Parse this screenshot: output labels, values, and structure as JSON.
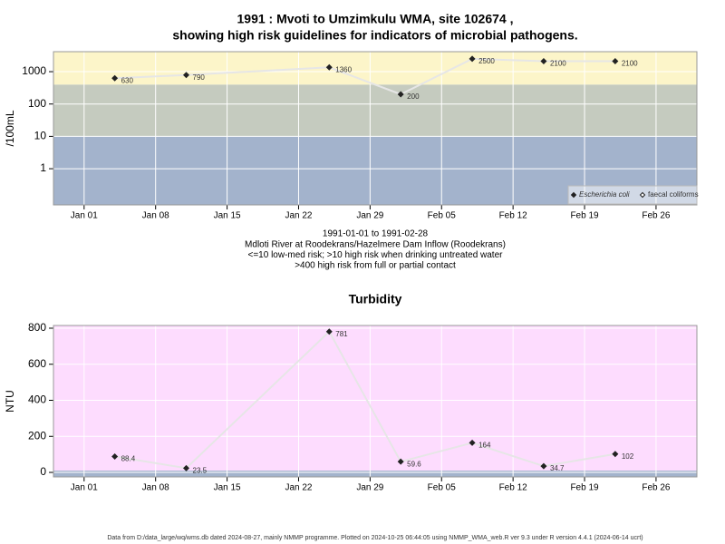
{
  "chart_data": [
    {
      "type": "line",
      "title": "1991 : Mvoti to Umzimkulu WMA, site 102674 ,",
      "subtitle": "showing high risk guidelines for indicators of microbial pathogens.",
      "ylabel": "/100mL",
      "notes": [
        "1991-01-01 to 1991-02-28",
        "Mdloti River at Roodekrans/Hazelmere Dam Inflow (Roodekrans)",
        "<=10 low-med risk; >10 high risk when drinking untreated water",
        ">400 high risk from full or partial contact"
      ],
      "x": [
        "1991-01-04",
        "1991-01-11",
        "1991-01-25",
        "1991-02-01",
        "1991-02-08",
        "1991-02-15",
        "1991-02-22"
      ],
      "series": [
        {
          "name": "Escherichia coli",
          "color": "#222222",
          "line_color": "#e6e6e6",
          "values": [
            630,
            790,
            1360,
            200,
            2500,
            2100,
            2100
          ]
        },
        {
          "name": "faecal coliforms",
          "color": "#222222",
          "line_color": "#e6e6e6",
          "values": [
            null,
            null,
            null,
            null,
            null,
            null,
            null
          ]
        }
      ],
      "log_y": true,
      "ylim": [
        0.076,
        4150
      ],
      "yticks": [
        1,
        10,
        100,
        1000
      ],
      "xlim": [
        "1990-12-29",
        "1991-03-02"
      ],
      "xticks": [
        {
          "value": "1991-01-01",
          "label": "Jan 01"
        },
        {
          "value": "1991-01-08",
          "label": "Jan 08"
        },
        {
          "value": "1991-01-15",
          "label": "Jan 15"
        },
        {
          "value": "1991-01-22",
          "label": "Jan 22"
        },
        {
          "value": "1991-01-29",
          "label": "Jan 29"
        },
        {
          "value": "1991-02-05",
          "label": "Feb 05"
        },
        {
          "value": "1991-02-12",
          "label": "Feb 12"
        },
        {
          "value": "1991-02-19",
          "label": "Feb 19"
        },
        {
          "value": "1991-02-26",
          "label": "Feb 26"
        }
      ],
      "bands": {
        "breaks": [
          10,
          400
        ],
        "colors": [
          "#a3b3cc",
          "#c5cbbf",
          "#fcf5c9"
        ]
      },
      "grid": true,
      "legend": "lower right"
    },
    {
      "type": "line",
      "title": "Turbidity",
      "ylabel": "NTU",
      "x": [
        "1991-01-04",
        "1991-01-11",
        "1991-01-25",
        "1991-02-01",
        "1991-02-08",
        "1991-02-15",
        "1991-02-22"
      ],
      "series": [
        {
          "name": "Turbidity",
          "color": "#222222",
          "line_color": "#e6e6e6",
          "values": [
            88.4,
            23.5,
            781,
            59.6,
            164,
            34.7,
            102
          ]
        }
      ],
      "log_y": false,
      "ylim": [
        -25,
        815
      ],
      "yticks": [
        0,
        200,
        400,
        600,
        800
      ],
      "xlim": [
        "1990-12-29",
        "1991-03-02"
      ],
      "xticks": [
        {
          "value": "1991-01-01",
          "label": "Jan 01"
        },
        {
          "value": "1991-01-08",
          "label": "Jan 08"
        },
        {
          "value": "1991-01-15",
          "label": "Jan 15"
        },
        {
          "value": "1991-01-22",
          "label": "Jan 22"
        },
        {
          "value": "1991-01-29",
          "label": "Jan 29"
        },
        {
          "value": "1991-02-05",
          "label": "Feb 05"
        },
        {
          "value": "1991-02-12",
          "label": "Feb 12"
        },
        {
          "value": "1991-02-19",
          "label": "Feb 19"
        },
        {
          "value": "1991-02-26",
          "label": "Feb 26"
        }
      ],
      "bands": {
        "breaks": [
          10
        ],
        "colors": [
          "#a3b3cc",
          "#fddcfe"
        ]
      },
      "grid": true
    }
  ],
  "footer": "Data from D:/data_large/wq/wms.db dated 2024-08-27, mainly NMMP programme. Plotted on 2024-10-25 06:44:05 using NMMP_WMA_web.R ver 9.3 under R version 4.4.1 (2024-06-14 ucrt)"
}
